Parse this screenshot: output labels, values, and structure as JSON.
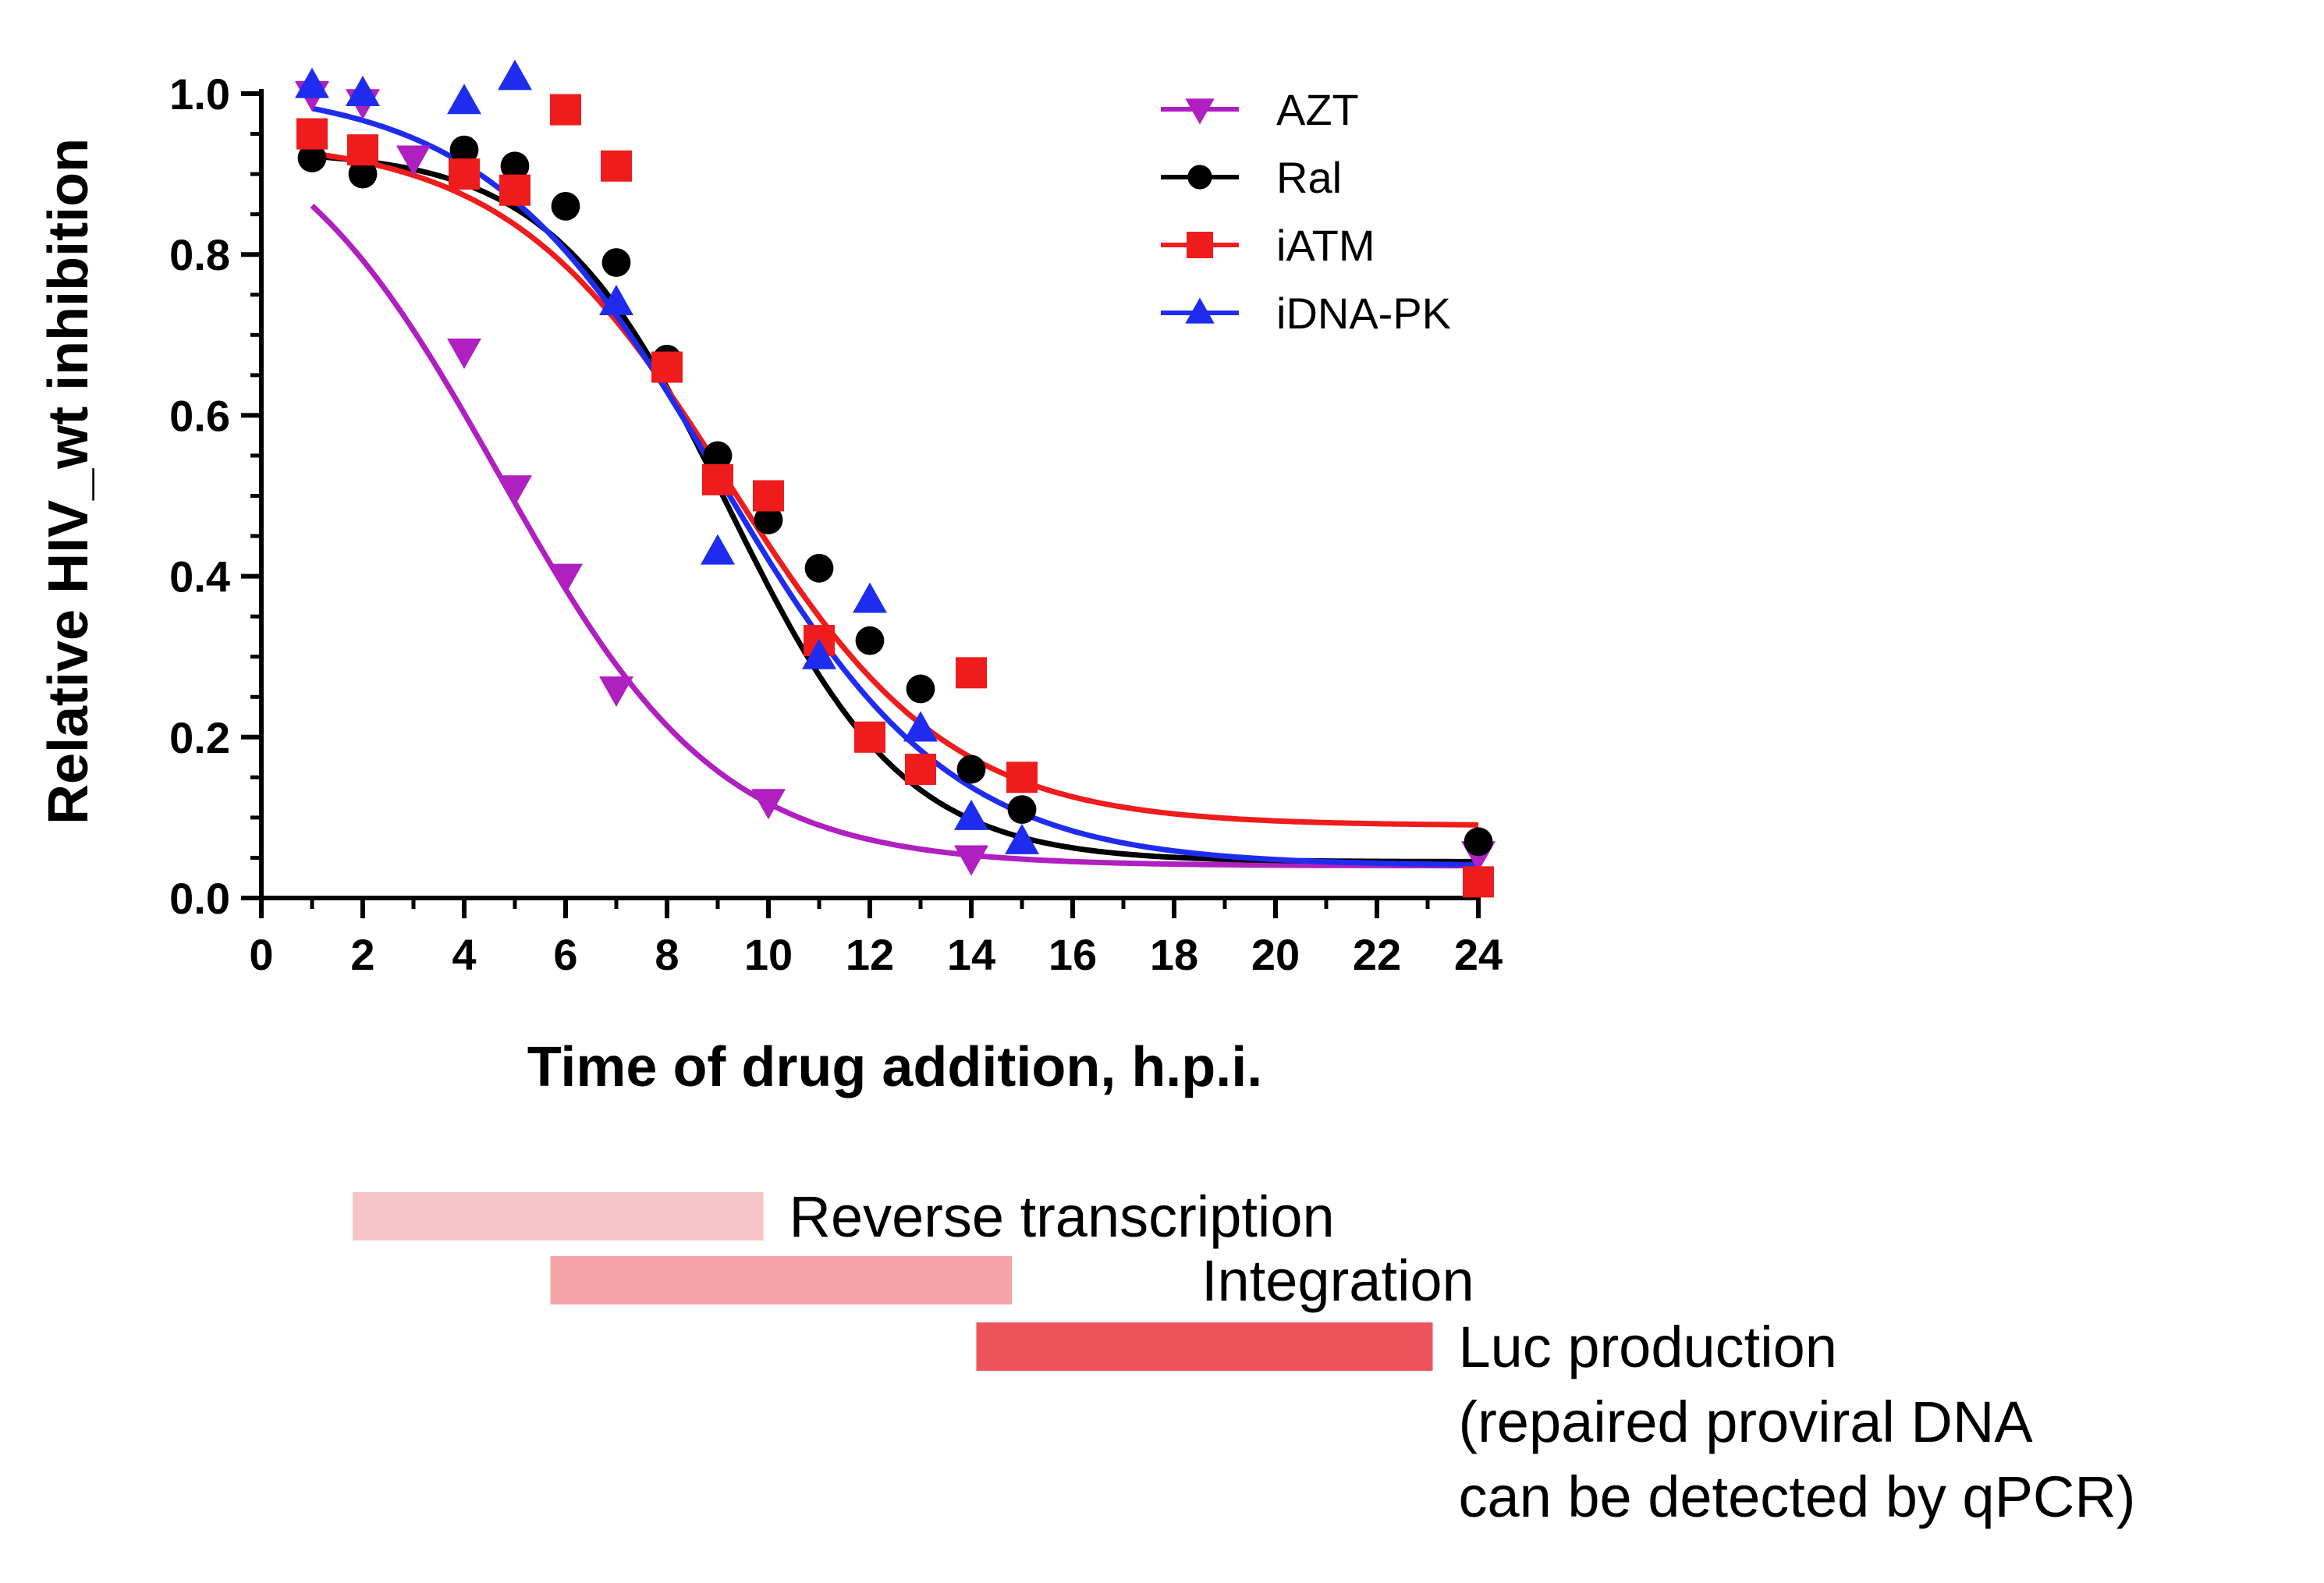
{
  "chart_data": {
    "type": "scatter",
    "xlabel": "Time of drug addition, h.p.i.",
    "ylabel": "Relative HIV_wt inhibition",
    "xlim": [
      0,
      24
    ],
    "ylim": [
      0,
      1.0
    ],
    "x_ticks": [
      "0",
      "2",
      "4",
      "6",
      "8",
      "10",
      "12",
      "14",
      "16",
      "18",
      "20",
      "22",
      "24"
    ],
    "y_ticks": [
      "0.0",
      "0.2",
      "0.4",
      "0.6",
      "0.8",
      "1.0"
    ],
    "grid": false,
    "legend_position": "top-right",
    "fit_curves": true,
    "series": [
      {
        "name": "AZT",
        "color": "#b01fc0",
        "marker": "triangle-down",
        "x": [
          1,
          2,
          3,
          4,
          5,
          6,
          7,
          10,
          14,
          24
        ],
        "y": [
          1.0,
          0.99,
          0.92,
          0.68,
          0.51,
          0.4,
          0.26,
          0.12,
          0.05,
          0.055
        ],
        "fit": {
          "top": 1.01,
          "bottom": 0.04,
          "x50": 4.7,
          "slope": 0.2
        }
      },
      {
        "name": "Ral",
        "color": "#000000",
        "marker": "circle",
        "x": [
          1,
          2,
          4,
          5,
          6,
          7,
          8,
          9,
          10,
          11,
          12,
          13,
          14,
          15,
          24
        ],
        "y": [
          0.92,
          0.9,
          0.93,
          0.91,
          0.86,
          0.79,
          0.67,
          0.55,
          0.47,
          0.41,
          0.32,
          0.26,
          0.16,
          0.11,
          0.07
        ],
        "fit": {
          "top": 0.93,
          "bottom": 0.045,
          "x50": 9.2,
          "slope": 0.25
        }
      },
      {
        "name": "iATM",
        "color": "#ee1c1c",
        "marker": "square",
        "x": [
          1,
          2,
          4,
          5,
          6,
          7,
          8,
          9,
          10,
          11,
          12,
          13,
          14,
          15,
          24
        ],
        "y": [
          0.95,
          0.93,
          0.9,
          0.88,
          0.98,
          0.91,
          0.66,
          0.52,
          0.5,
          0.32,
          0.2,
          0.16,
          0.28,
          0.15,
          0.02
        ],
        "fit": {
          "top": 0.945,
          "bottom": 0.09,
          "x50": 9.2,
          "slope": 0.2
        }
      },
      {
        "name": "iDNA-PK",
        "color": "#1f2cf0",
        "marker": "triangle-up",
        "x": [
          1,
          2,
          4,
          5,
          7,
          9,
          11,
          12,
          13,
          14,
          15
        ],
        "y": [
          1.01,
          1.0,
          0.99,
          1.02,
          0.74,
          0.43,
          0.3,
          0.37,
          0.21,
          0.1,
          0.07
        ],
        "fit": {
          "top": 1.01,
          "bottom": 0.04,
          "x50": 9.0,
          "slope": 0.19
        }
      }
    ],
    "phases": [
      {
        "label": "Reverse transcription",
        "start": 1.8,
        "end": 9.9,
        "color": "#f7c5c5"
      },
      {
        "label": "Integration",
        "start": 5.7,
        "end": 14.8,
        "color": "#f5a3a6"
      },
      {
        "label": "Luc production",
        "start": 14.1,
        "end": 23.1,
        "color": "#ee535b",
        "note_lines": [
          "(repaired proviral DNA",
          "can be detected by qPCR)"
        ]
      }
    ]
  }
}
